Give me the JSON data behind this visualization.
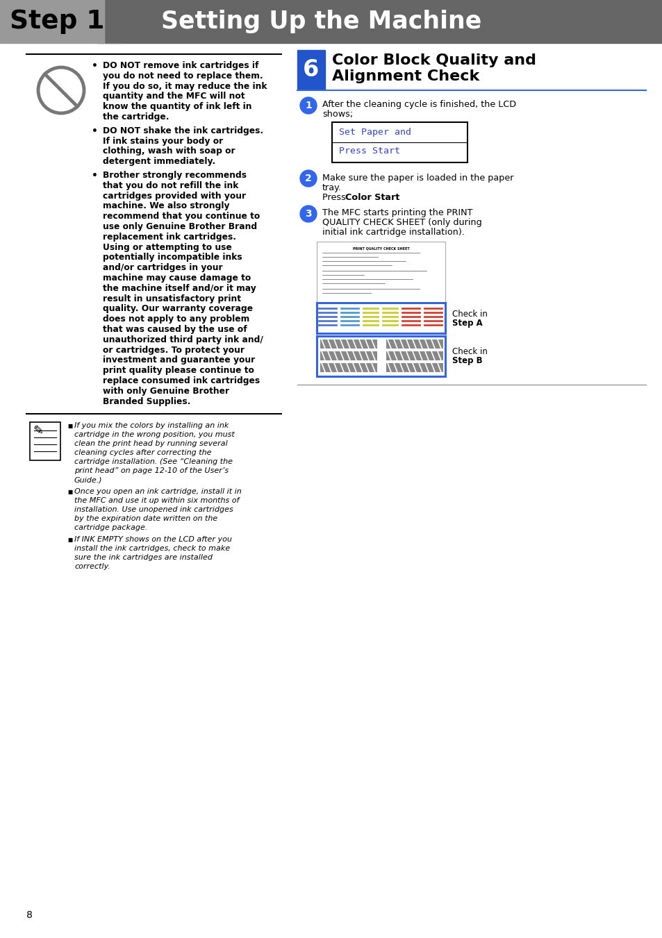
{
  "page_bg": "#ffffff",
  "header_grey_light": "#999999",
  "header_grey_dark": "#666666",
  "step_text": "Step 1",
  "title_text": "Setting Up the Machine",
  "section_number": "6",
  "section_bg": "#2255cc",
  "section_title_line1": "Color Block Quality and",
  "section_title_line2": "Alignment Check",
  "blue_circle": "#3366ee",
  "blue_line": "#3366ee",
  "lcd_blue": "#3344cc",
  "bullet1": [
    "DO NOT remove ink cartridges if",
    "you do not need to replace them.",
    "If you do so, it may reduce the ink",
    "quantity and the MFC will not",
    "know the quantity of ink left in",
    "the cartridge."
  ],
  "bullet2": [
    "DO NOT shake the ink cartridges.",
    "If ink stains your body or",
    "clothing, wash with soap or",
    "detergent immediately."
  ],
  "bullet3": [
    "Brother strongly recommends",
    "that you do not refill the ink",
    "cartridges provided with your",
    "machine. We also strongly",
    "recommend that you continue to",
    "use only Genuine Brother Brand",
    "replacement ink cartridges.",
    "Using or attempting to use",
    "potentially incompatible inks",
    "and/or cartridges in your",
    "machine may cause damage to",
    "the machine itself and/or it may",
    "result in unsatisfactory print",
    "quality. Our warranty coverage",
    "does not apply to any problem",
    "that was caused by the use of",
    "unauthorized third party ink and/",
    "or cartridges. To protect your",
    "investment and guarantee your",
    "print quality please continue to",
    "replace consumed ink cartridges",
    "with only Genuine Brother",
    "Branded Supplies."
  ],
  "note1_lines": [
    "If you mix the colors by installing an ink",
    "cartridge in the wrong position, you must",
    "clean the print head by running several",
    "cleaning cycles after correcting the",
    "cartridge installation. (See “Cleaning the",
    "print head” on page 12-10 of the User’s",
    "Guide.)"
  ],
  "note2_lines": [
    "Once you open an ink cartridge, install it in",
    "the MFC and use it up within six months of",
    "installation. Use unopened ink cartridges",
    "by the expiration date written on the",
    "cartridge package."
  ],
  "note3_lines": [
    "If INK EMPTY shows on the LCD after you",
    "install the ink cartridges, check to make",
    "sure the ink cartridges are installed",
    "correctly."
  ],
  "lcd_line1": "Set Paper and",
  "lcd_line2": "Press Start",
  "step1_a": "After the cleaning cycle is finished, the LCD",
  "step1_b": "shows;",
  "step2_a": "Make sure the paper is loaded in the paper",
  "step2_b": "tray.",
  "step2_c1": "Press ",
  "step2_c2": "Color Start",
  "step2_c3": ".",
  "step3_a": "The MFC starts printing the PRINT",
  "step3_b": "QUALITY CHECK SHEET (only during",
  "step3_c": "initial ink cartridge installation).",
  "check_a_1": "Check in ",
  "check_a_2": "Step A",
  "check_b_1": "Check in ",
  "check_b_2": "Step B",
  "page_num": "8",
  "pqs_title": "PRINT QUALITY CHECK SHEET"
}
